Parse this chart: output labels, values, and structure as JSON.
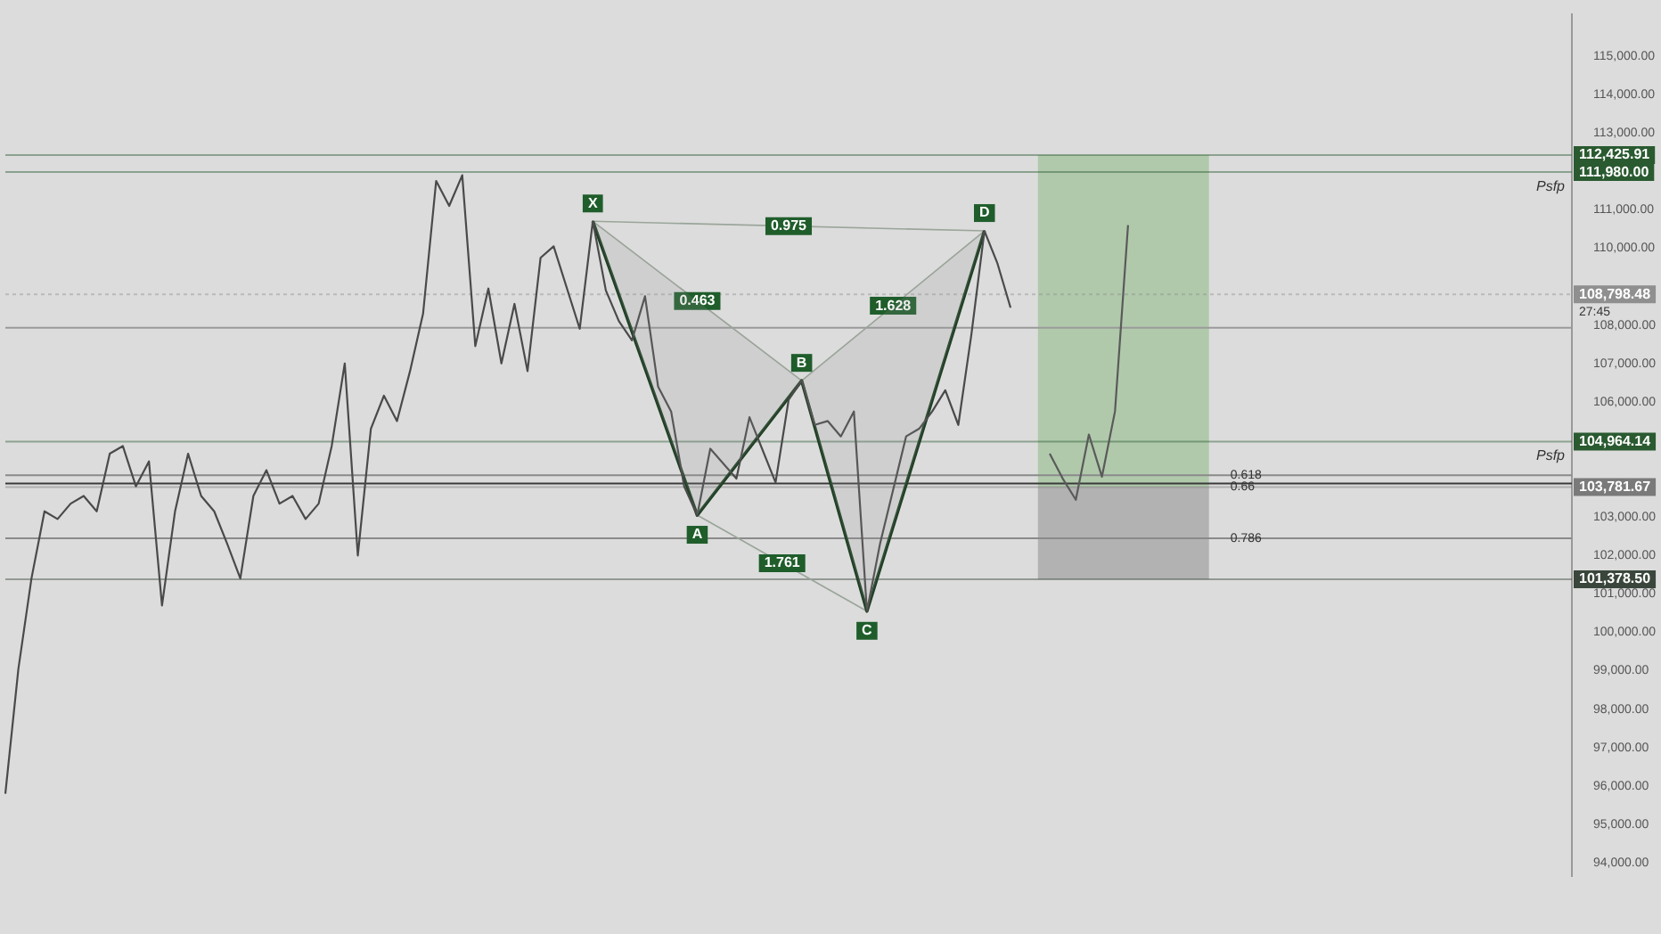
{
  "chart_data": {
    "type": "line",
    "categories": [
      null,
      null,
      null,
      null,
      null,
      null,
      null,
      null,
      null,
      null,
      null,
      null,
      null,
      null,
      null,
      null,
      null,
      null,
      null,
      null,
      null,
      null,
      null,
      null,
      null,
      null,
      null,
      null,
      null,
      null,
      null,
      null,
      null,
      null,
      null,
      null,
      null,
      null,
      null,
      null,
      null,
      null,
      null,
      null,
      null,
      null,
      null,
      null,
      null,
      null,
      null,
      null,
      null,
      null,
      null,
      null,
      null,
      null,
      null,
      null,
      null,
      null,
      null,
      null,
      null,
      null,
      null,
      null,
      null,
      null,
      null,
      null,
      null,
      null,
      null,
      null,
      null,
      null,
      null,
      null,
      null,
      null,
      null,
      null,
      null,
      null,
      null,
      null,
      null,
      null,
      null,
      null,
      null,
      null,
      null,
      null,
      null,
      null,
      null,
      null,
      null,
      null,
      null,
      null,
      null,
      null,
      null,
      null,
      null,
      null,
      null,
      null,
      null,
      null,
      null,
      null,
      null,
      null,
      null,
      null,
      null
    ],
    "series": [
      {
        "color": "#4a4a4a",
        "values": [
          95800,
          99050,
          101400,
          103150,
          102950,
          103350,
          103550,
          103150,
          104650,
          104850,
          103800,
          104450,
          100700,
          103150,
          104650,
          103550,
          103150,
          102300,
          101400,
          103550,
          104220,
          103350,
          103550,
          102950,
          103350,
          104850,
          107000,
          102000,
          105300,
          106160,
          105500,
          106800,
          108300,
          111750,
          111100,
          111900,
          107450,
          108950,
          107000,
          108550,
          106800,
          109750,
          110050,
          null,
          107900,
          110700,
          108900,
          108100,
          107600,
          108750,
          106400,
          105750,
          103800,
          103050,
          104780,
          null,
          104000,
          105600,
          null,
          103900,
          106050,
          106550,
          105400,
          105500,
          105100,
          105750,
          100550,
          102300,
          103700,
          105100,
          105300,
          105750,
          106300,
          105400,
          107750,
          110450,
          109600,
          108450,
          null,
          null,
          null,
          null,
          null,
          null,
          null,
          null,
          null,
          null,
          null,
          null,
          null,
          null,
          null,
          null,
          null,
          null,
          null,
          null,
          null,
          null,
          null,
          null,
          null,
          null,
          null,
          null,
          null,
          null,
          null,
          null,
          null,
          null,
          null,
          null,
          null,
          null,
          null,
          null,
          null,
          null,
          null
        ]
      },
      {
        "color": "#1f3f24",
        "values": [
          null,
          null,
          null,
          null,
          null,
          null,
          null,
          null,
          null,
          null,
          null,
          null,
          null,
          null,
          null,
          null,
          null,
          null,
          null,
          null,
          null,
          null,
          null,
          null,
          null,
          null,
          null,
          null,
          null,
          null,
          null,
          null,
          null,
          null,
          null,
          null,
          null,
          null,
          null,
          null,
          null,
          null,
          null,
          null,
          null,
          110700,
          null,
          null,
          null,
          null,
          null,
          null,
          null,
          103050,
          null,
          null,
          null,
          null,
          null,
          null,
          null,
          106550,
          null,
          null,
          null,
          null,
          100550,
          null,
          null,
          null,
          null,
          null,
          null,
          null,
          null,
          110450,
          null,
          null,
          null,
          null,
          null,
          null,
          null,
          null,
          null,
          null,
          null,
          null,
          null,
          null,
          null,
          null,
          null,
          null,
          null,
          null,
          null,
          null,
          null,
          null,
          null,
          null,
          null,
          null,
          null,
          null,
          null,
          null,
          null,
          null,
          null,
          null,
          null,
          null,
          null,
          null,
          null,
          null,
          null,
          null,
          null
        ],
        "value_labels": [
          null,
          null,
          null,
          null,
          null,
          null,
          null,
          null,
          null,
          null,
          null,
          null,
          null,
          null,
          null,
          null,
          null,
          null,
          null,
          null,
          null,
          null,
          null,
          null,
          null,
          null,
          null,
          null,
          null,
          null,
          null,
          null,
          null,
          null,
          null,
          null,
          null,
          null,
          null,
          null,
          null,
          null,
          null,
          null,
          null,
          "X",
          null,
          null,
          null,
          null,
          null,
          null,
          null,
          "A",
          null,
          null,
          null,
          null,
          null,
          null,
          null,
          "B",
          null,
          null,
          null,
          null,
          "C",
          null,
          null,
          null,
          null,
          null,
          null,
          null,
          null,
          "D",
          null,
          null,
          null,
          null,
          null,
          null,
          null,
          null,
          null,
          null,
          null,
          null,
          null,
          null,
          null,
          null,
          null,
          null,
          null,
          null,
          null,
          null,
          null,
          null,
          null,
          null,
          null,
          null,
          null,
          null,
          null,
          null,
          null,
          null,
          null,
          null,
          null,
          null,
          null,
          null,
          null,
          null,
          null,
          null,
          null
        ]
      },
      {
        "color": "#5a5a5a",
        "values": [
          null,
          null,
          null,
          null,
          null,
          null,
          null,
          null,
          null,
          null,
          null,
          null,
          null,
          null,
          null,
          null,
          null,
          null,
          null,
          null,
          null,
          null,
          null,
          null,
          null,
          null,
          null,
          null,
          null,
          null,
          null,
          null,
          null,
          null,
          null,
          null,
          null,
          null,
          null,
          null,
          null,
          null,
          null,
          null,
          null,
          null,
          null,
          null,
          null,
          null,
          null,
          null,
          null,
          null,
          null,
          null,
          null,
          null,
          null,
          null,
          null,
          null,
          null,
          null,
          null,
          null,
          null,
          null,
          null,
          null,
          null,
          null,
          null,
          null,
          null,
          null,
          null,
          null,
          null,
          null,
          104650,
          104000,
          103450,
          105150,
          104050,
          105750,
          110600,
          null,
          null,
          null,
          null,
          null,
          null,
          null,
          null,
          null,
          null,
          null,
          null,
          null,
          null,
          null,
          null,
          null,
          null,
          null,
          null,
          null,
          null,
          null,
          null,
          null,
          null,
          null,
          null,
          null,
          null,
          null,
          null,
          null,
          null
        ]
      }
    ],
    "ylim": [
      93650,
      116080
    ],
    "yticks": [
      {
        "value": 94000,
        "label": "94,000.00"
      },
      {
        "value": 95000,
        "label": "95,000.00"
      },
      {
        "value": 96000,
        "label": "96,000.00"
      },
      {
        "value": 97000,
        "label": "97,000.00"
      },
      {
        "value": 98000,
        "label": "98,000.00"
      },
      {
        "value": 99000,
        "label": "99,000.00"
      },
      {
        "value": 100000,
        "label": "100,000.00"
      },
      {
        "value": 101000,
        "label": "101,000.00"
      },
      {
        "value": 102000,
        "label": "102,000.00"
      },
      {
        "value": 103000,
        "label": "103,000.00"
      },
      {
        "value": 106000,
        "label": "106,000.00"
      },
      {
        "value": 107000,
        "label": "107,000.00"
      },
      {
        "value": 108000,
        "label": "108,000.00"
      },
      {
        "value": 110000,
        "label": "110,000.00"
      },
      {
        "value": 111000,
        "label": "111,000.00"
      },
      {
        "value": 113000,
        "label": "113,000.00"
      },
      {
        "value": 114000,
        "label": "114,000.00"
      },
      {
        "value": 115000,
        "label": "115,000.00"
      }
    ],
    "bands": [
      {
        "axis": "y",
        "from": 103781.67,
        "to": 112425.91,
        "color": "#a8c6a2"
      },
      {
        "axis": "y",
        "from": 101378.5,
        "to": 103781.67,
        "color": "#aaaaaa"
      }
    ],
    "ref_lines": [
      {
        "axis": "y",
        "value": 112425.91,
        "label": "112,425.91",
        "color": "#2a5a30"
      },
      {
        "axis": "y",
        "value": 111980,
        "label": "111,980.00",
        "color": "#2a5a30"
      },
      {
        "axis": "y",
        "value": 108798.48,
        "label": "108,798.48",
        "color": "#8f8f8f",
        "line_style": "dotted"
      },
      {
        "axis": "y",
        "value": 107930,
        "color": "#9a9a9a"
      },
      {
        "axis": "y",
        "value": 104964.14,
        "label": "104,964.14",
        "color": "#2a5a30"
      },
      {
        "axis": "y",
        "value": 104090,
        "color": "#8a8a8a"
      },
      {
        "axis": "y",
        "value": 103875,
        "color": "#3a3a3a"
      },
      {
        "axis": "y",
        "value": 103781.67,
        "label": "103,781.67",
        "color": "#7a7a7a"
      },
      {
        "axis": "y",
        "value": 102450,
        "color": "#8a8a8a"
      },
      {
        "axis": "y",
        "value": 101378.5,
        "label": "101,378.50",
        "color": "#3a463c"
      }
    ],
    "annotations": [
      "0.463",
      "0.975",
      "1.628",
      "1.761",
      "Psfp",
      "Psfp",
      "0.618",
      "0.66",
      "0.786",
      "27:45"
    ],
    "grid": false,
    "legend": false,
    "marker": "none",
    "line_style": "solid"
  }
}
